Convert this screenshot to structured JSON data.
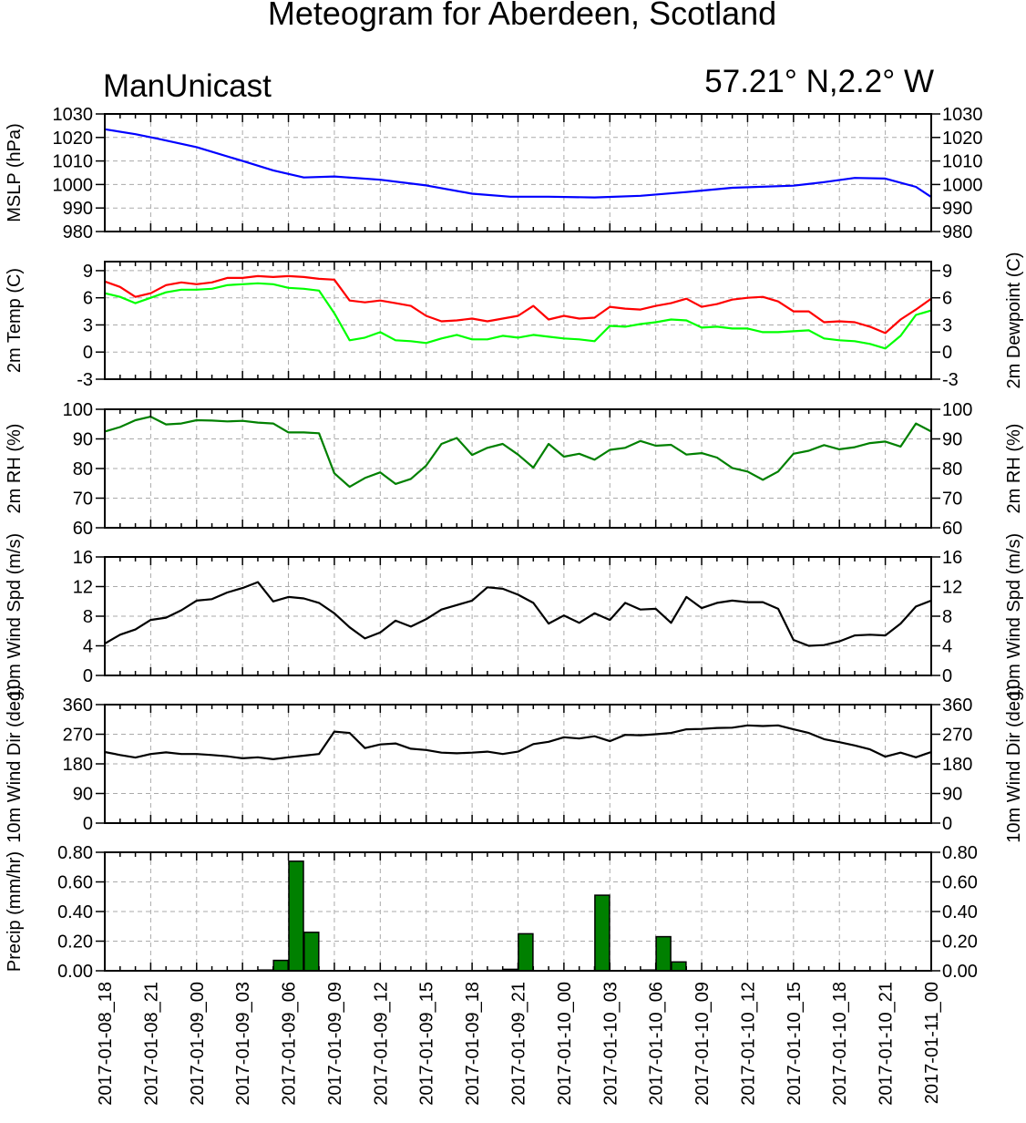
{
  "title": "Meteogram for Aberdeen, Scotland",
  "model_label": "ManUnicast",
  "location_label": "57.21° N,2.2° W",
  "x_tick_labels": [
    "2017-01-08_18",
    "2017-01-08_21",
    "2017-01-09_00",
    "2017-01-09_03",
    "2017-01-09_06",
    "2017-01-09_09",
    "2017-01-09_12",
    "2017-01-09_15",
    "2017-01-09_18",
    "2017-01-09_21",
    "2017-01-10_00",
    "2017-01-10_03",
    "2017-01-10_06",
    "2017-01-10_09",
    "2017-01-10_12",
    "2017-01-10_15",
    "2017-01-10_18",
    "2017-01-10_21",
    "2017-01-11_00"
  ],
  "chart_data": [
    {
      "id": "mslp",
      "type": "line",
      "ylabel": "MSLP (hPa)",
      "ylim": [
        980,
        1030
      ],
      "yticks": [
        980,
        990,
        1000,
        1010,
        1020,
        1030
      ],
      "grid": true,
      "x_hours": [
        0,
        3,
        6,
        9,
        12,
        15,
        18,
        21,
        24,
        27,
        30,
        33,
        36,
        39,
        42,
        45,
        48,
        51,
        54
      ],
      "series": [
        {
          "color": "#0000ff",
          "values": [
            1023.5,
            1021.4,
            1019.4,
            1015.9,
            1010.0,
            1006.0,
            1003.0,
            1003.4,
            1002.0,
            999.6,
            996.1,
            994.8,
            994.8,
            994.5,
            995.2,
            996.8,
            998.6,
            999.5,
            1001.0,
            1002.8,
            1002.5,
            999.0,
            994.7
          ],
          "x": [
            0,
            2,
            3.5,
            6,
            9,
            11,
            13,
            15,
            18,
            21,
            24,
            26.5,
            29,
            32,
            35,
            38,
            41,
            45,
            47,
            49,
            51,
            53,
            54
          ]
        }
      ]
    },
    {
      "id": "temp",
      "type": "line",
      "ylabel": "2m Temp (C)",
      "ylabel_right": "2m Dewpoint (C)",
      "ylim": [
        -3,
        10
      ],
      "yticks": [
        -3,
        0,
        3,
        6,
        9
      ],
      "grid": true,
      "x_hours": [
        0,
        1,
        2,
        3,
        4,
        5,
        6,
        7,
        8,
        9,
        10,
        11,
        12,
        13,
        14,
        15,
        16,
        17,
        18,
        19,
        20,
        21,
        22,
        23,
        24,
        25,
        26,
        27,
        28,
        29,
        30,
        31,
        32,
        33,
        34,
        35,
        36,
        37,
        38,
        39,
        40,
        41,
        42,
        43,
        44,
        45,
        46,
        47,
        48,
        49,
        50,
        51,
        52,
        53,
        54
      ],
      "series": [
        {
          "name_key": "temp",
          "color": "#ff0000",
          "values": [
            7.8,
            7.2,
            6.1,
            6.5,
            7.4,
            7.7,
            7.5,
            7.7,
            8.2,
            8.2,
            8.4,
            8.3,
            8.4,
            8.3,
            8.1,
            8.0,
            5.7,
            5.5,
            5.7,
            5.4,
            5.1,
            4.0,
            3.4,
            3.5,
            3.7,
            3.4,
            3.7,
            4.0,
            5.1,
            3.6,
            4.0,
            3.7,
            3.8,
            5.0,
            4.8,
            4.7,
            5.1,
            5.4,
            5.9,
            5.0,
            5.3,
            5.8,
            6.0,
            6.1,
            5.6,
            4.5,
            4.5,
            3.3,
            3.4,
            3.3,
            2.8,
            2.1,
            3.6,
            4.7,
            5.9
          ]
        },
        {
          "name_key": "dewpoint",
          "color": "#00ff00",
          "values": [
            6.5,
            6.1,
            5.4,
            6.0,
            6.6,
            6.9,
            6.9,
            7.0,
            7.4,
            7.5,
            7.6,
            7.5,
            7.1,
            7.0,
            6.8,
            4.3,
            1.3,
            1.6,
            2.2,
            1.3,
            1.2,
            1.0,
            1.5,
            1.9,
            1.4,
            1.4,
            1.8,
            1.6,
            1.9,
            1.7,
            1.5,
            1.4,
            1.2,
            2.9,
            2.8,
            3.1,
            3.3,
            3.6,
            3.5,
            2.7,
            2.8,
            2.6,
            2.6,
            2.2,
            2.2,
            2.3,
            2.4,
            1.5,
            1.3,
            1.2,
            0.9,
            0.4,
            1.8,
            4.1,
            4.6
          ]
        }
      ]
    },
    {
      "id": "rh",
      "type": "line",
      "ylabel": "2m RH (%)",
      "ylim": [
        60,
        100
      ],
      "yticks": [
        60,
        70,
        80,
        90,
        100
      ],
      "grid": true,
      "x_hours": [
        0,
        1,
        2,
        3,
        4,
        5,
        6,
        7,
        8,
        9,
        10,
        11,
        12,
        13,
        14,
        15,
        16,
        17,
        18,
        19,
        20,
        21,
        22,
        23,
        24,
        25,
        26,
        27,
        28,
        29,
        30,
        31,
        32,
        33,
        34,
        35,
        36,
        37,
        38,
        39,
        40,
        41,
        42,
        43,
        44,
        45,
        46,
        47,
        48,
        49,
        50,
        51,
        52,
        53,
        54
      ],
      "series": [
        {
          "color": "#008000",
          "values": [
            92.5,
            94.0,
            96.3,
            97.5,
            94.9,
            95.2,
            96.3,
            96.2,
            95.9,
            96.1,
            95.5,
            95.2,
            92.2,
            92.2,
            91.9,
            78.4,
            73.8,
            76.8,
            78.7,
            74.8,
            76.5,
            81.0,
            88.3,
            90.3,
            84.6,
            87.0,
            88.3,
            84.7,
            80.3,
            88.3,
            84.0,
            85.0,
            83.0,
            86.3,
            87.0,
            89.3,
            87.7,
            88.0,
            84.7,
            85.2,
            83.7,
            80.2,
            79.0,
            76.2,
            79.0,
            85.0,
            86.0,
            87.9,
            86.5,
            87.2,
            88.6,
            89.1,
            87.4,
            95.2,
            92.5
          ]
        }
      ]
    },
    {
      "id": "wspd",
      "type": "line",
      "ylabel": "10m Wind Spd (m/s)",
      "ylim": [
        0,
        16
      ],
      "yticks": [
        0,
        4,
        8,
        12,
        16
      ],
      "grid": true,
      "x_hours": [
        0,
        1,
        2,
        3,
        4,
        5,
        6,
        7,
        8,
        9,
        10,
        11,
        12,
        13,
        14,
        15,
        16,
        17,
        18,
        19,
        20,
        21,
        22,
        23,
        24,
        25,
        26,
        27,
        28,
        29,
        30,
        31,
        32,
        33,
        34,
        35,
        36,
        37,
        38,
        39,
        40,
        41,
        42,
        43,
        44,
        45,
        46,
        47,
        48,
        49,
        50,
        51,
        52,
        53,
        54
      ],
      "series": [
        {
          "color": "#000000",
          "values": [
            4.3,
            5.5,
            6.2,
            7.5,
            7.8,
            8.8,
            10.1,
            10.3,
            11.2,
            11.8,
            12.6,
            10.0,
            10.6,
            10.4,
            9.8,
            8.4,
            6.5,
            5.0,
            5.8,
            7.4,
            6.6,
            7.6,
            8.9,
            9.5,
            10.1,
            11.9,
            11.7,
            10.9,
            9.8,
            7.0,
            8.1,
            7.1,
            8.4,
            7.5,
            9.8,
            8.9,
            9.0,
            7.1,
            10.6,
            9.1,
            9.8,
            10.1,
            9.9,
            9.9,
            9.0,
            4.8,
            4.0,
            4.1,
            4.6,
            5.4,
            5.5,
            5.4,
            7.0,
            9.3,
            10.1
          ]
        }
      ]
    },
    {
      "id": "wdir",
      "type": "line",
      "ylabel": "10m Wind Dir (deg)",
      "ylim": [
        0,
        360
      ],
      "yticks": [
        0,
        90,
        180,
        270,
        360
      ],
      "grid": true,
      "x_hours": [
        0,
        1,
        2,
        3,
        4,
        5,
        6,
        7,
        8,
        9,
        10,
        11,
        12,
        13,
        14,
        15,
        16,
        17,
        18,
        19,
        20,
        21,
        22,
        23,
        24,
        25,
        26,
        27,
        28,
        29,
        30,
        31,
        32,
        33,
        34,
        35,
        36,
        37,
        38,
        39,
        40,
        41,
        42,
        43,
        44,
        45,
        46,
        47,
        48,
        49,
        50,
        51,
        52,
        53,
        54
      ],
      "series": [
        {
          "color": "#000000",
          "values": [
            216,
            207,
            199,
            210,
            215,
            210,
            210,
            207,
            203,
            197,
            200,
            194,
            200,
            205,
            210,
            278,
            274,
            228,
            239,
            242,
            226,
            222,
            214,
            212,
            214,
            217,
            210,
            217,
            240,
            247,
            261,
            257,
            264,
            249,
            268,
            267,
            270,
            274,
            285,
            286,
            289,
            290,
            297,
            295,
            297,
            285,
            274,
            255,
            246,
            236,
            224,
            202,
            214,
            200,
            216
          ]
        }
      ]
    },
    {
      "id": "precip",
      "type": "bar",
      "ylabel": "Precip (mm/hr)",
      "ylim": [
        0,
        0.8
      ],
      "ytick_labels": [
        "0.00",
        "0.20",
        "0.40",
        "0.60",
        "0.80"
      ],
      "yticks": [
        0,
        0.2,
        0.4,
        0.6,
        0.8
      ],
      "grid": true,
      "bar_color": "#008000",
      "x_hours": [
        10,
        11,
        12,
        13,
        25,
        26,
        27,
        32,
        35,
        36,
        37
      ],
      "values": [
        0.005,
        0.07,
        0.74,
        0.26,
        0.003,
        0.01,
        0.25,
        0.51,
        0.005,
        0.23,
        0.06
      ]
    }
  ]
}
